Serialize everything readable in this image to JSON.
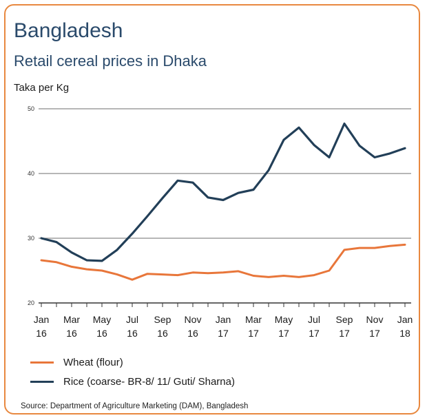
{
  "header": {
    "title": "Bangladesh",
    "subtitle": "Retail cereal prices in Dhaka",
    "unit_label": "Taka per Kg"
  },
  "footer": {
    "source": "Source: Department of Agriculture Marketing (DAM), Bangladesh"
  },
  "colors": {
    "border": "#e8883f",
    "title": "#2a4a6b",
    "wheat": "#e8763a",
    "rice": "#223f58",
    "grid": "#8a8a8a"
  },
  "chart_data": {
    "type": "line",
    "title": "Retail cereal prices in Dhaka",
    "ylabel": "Taka per Kg",
    "ylim": [
      20,
      50
    ],
    "yticks": [
      20,
      30,
      40,
      50
    ],
    "grid": "horizontal",
    "legend_position": "bottom",
    "x_tick_labels": [
      [
        "Jan",
        "16"
      ],
      [
        "Mar",
        "16"
      ],
      [
        "May",
        "16"
      ],
      [
        "Jul",
        "16"
      ],
      [
        "Sep",
        "16"
      ],
      [
        "Nov",
        "16"
      ],
      [
        "Jan",
        "17"
      ],
      [
        "Mar",
        "17"
      ],
      [
        "May",
        "17"
      ],
      [
        "Jul",
        "17"
      ],
      [
        "Sep",
        "17"
      ],
      [
        "Nov",
        "17"
      ],
      [
        "Jan",
        "18"
      ]
    ],
    "x": [
      "Jan 16",
      "Feb 16",
      "Mar 16",
      "Apr 16",
      "May 16",
      "Jun 16",
      "Jul 16",
      "Aug 16",
      "Sep 16",
      "Oct 16",
      "Nov 16",
      "Dec 16",
      "Jan 17",
      "Feb 17",
      "Mar 17",
      "Apr 17",
      "May 17",
      "Jun 17",
      "Jul 17",
      "Aug 17",
      "Sep 17",
      "Oct 17",
      "Nov 17",
      "Dec 17",
      "Jan 18"
    ],
    "series": [
      {
        "name": "Wheat (flour)",
        "color": "#e8763a",
        "values": [
          26.6,
          26.3,
          25.6,
          25.2,
          25.0,
          24.4,
          23.6,
          24.5,
          24.4,
          24.3,
          24.7,
          24.6,
          24.7,
          24.9,
          24.2,
          24.0,
          24.2,
          24.0,
          24.3,
          25.0,
          28.2,
          28.5,
          28.5,
          28.8,
          29.0
        ]
      },
      {
        "name": "Rice (coarse- BR-8/ 11/ Guti/ Sharna)",
        "color": "#223f58",
        "values": [
          30.0,
          29.4,
          27.8,
          26.6,
          26.5,
          28.2,
          30.7,
          33.4,
          36.2,
          38.9,
          38.6,
          36.3,
          35.9,
          37.0,
          37.5,
          40.5,
          45.2,
          47.1,
          44.4,
          42.5,
          47.7,
          44.3,
          42.5,
          43.1,
          43.9
        ]
      }
    ]
  }
}
